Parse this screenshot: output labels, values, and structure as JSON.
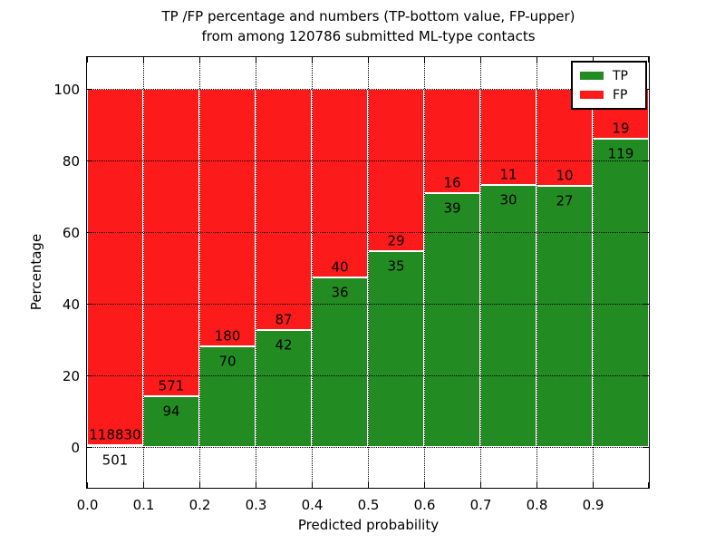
{
  "title": {
    "line1": "TP /FP percentage and numbers (TP-bottom value, FP-upper)",
    "line2": "from among 120786 submitted ML-type contacts"
  },
  "axes": {
    "xlabel": "Predicted probability",
    "ylabel": "Percentage",
    "x_tick_labels": [
      "0.0",
      "0.1",
      "0.2",
      "0.3",
      "0.4",
      "0.5",
      "0.6",
      "0.7",
      "0.8",
      "0.9"
    ],
    "y_tick_labels": [
      "0",
      "20",
      "40",
      "60",
      "80",
      "100"
    ],
    "y_tick_values": [
      0,
      20,
      40,
      60,
      80,
      100
    ]
  },
  "legend": {
    "position": "upper-right",
    "entries": [
      {
        "label": "TP",
        "color": "#228b22"
      },
      {
        "label": "FP",
        "color": "#fc1a1a"
      }
    ]
  },
  "colors": {
    "tp": "#228b22",
    "fp": "#fc1a1a",
    "grid": "#000000",
    "background": "#ffffff"
  },
  "chart_data": {
    "type": "bar",
    "subtype": "stacked-normalized-percentage",
    "title": "TP /FP percentage and numbers (TP-bottom value, FP-upper) from among 120786 submitted ML-type contacts",
    "xlabel": "Predicted probability",
    "ylabel": "Percentage",
    "categories": [
      "0.0-0.1",
      "0.1-0.2",
      "0.2-0.3",
      "0.3-0.4",
      "0.4-0.5",
      "0.5-0.6",
      "0.6-0.7",
      "0.7-0.8",
      "0.8-0.9",
      "0.9-1.0"
    ],
    "series": [
      {
        "name": "TP",
        "color": "#228b22",
        "counts": [
          501,
          94,
          70,
          42,
          36,
          35,
          39,
          30,
          27,
          119
        ],
        "percent": [
          0.4,
          14.1,
          28.0,
          32.6,
          47.4,
          54.7,
          70.9,
          73.2,
          73.0,
          86.2
        ]
      },
      {
        "name": "FP",
        "color": "#fc1a1a",
        "counts": [
          118830,
          571,
          180,
          87,
          40,
          29,
          16,
          11,
          10,
          19
        ],
        "percent": [
          99.6,
          85.9,
          72.0,
          67.4,
          52.6,
          45.3,
          29.1,
          26.8,
          27.0,
          13.8
        ]
      }
    ],
    "total_contacts": 120786,
    "x_range": [
      0.0,
      1.0
    ],
    "ylim": [
      0,
      100
    ],
    "grid": "dotted",
    "legend_position": "upper right",
    "annotation_note": "TP count printed below segment boundary, FP count printed above it"
  }
}
